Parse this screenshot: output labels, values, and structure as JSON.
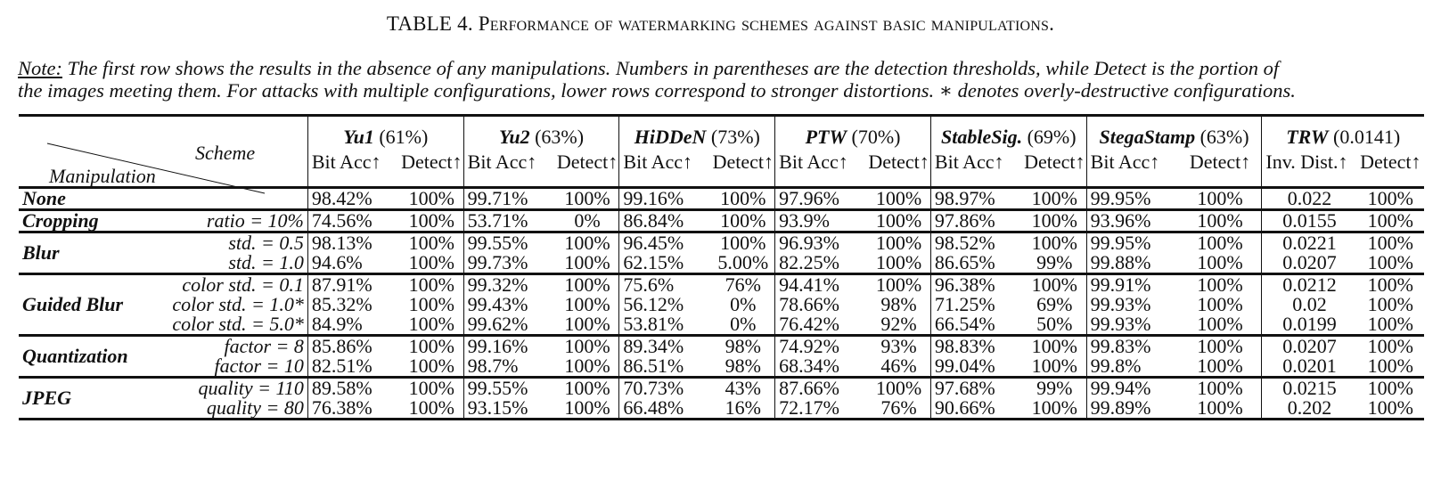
{
  "caption": {
    "label": "TABLE 4.",
    "title": "Performance of watermarking schemes against basic manipulations."
  },
  "note": {
    "label": "Note:",
    "text": " The first row shows the results in the absence of any manipulations. Numbers in parentheses are the detection thresholds, while Detect is the portion of",
    "text2": "the images meeting them. For attacks with multiple configurations, lower rows correspond to stronger distortions. ∗ denotes overly-destructive configurations."
  },
  "header": {
    "scheme_label": "Scheme",
    "manipulation_label": "Manipulation",
    "schemes": [
      {
        "name": "Yu1",
        "threshold": "(61%)"
      },
      {
        "name": "Yu2",
        "threshold": "(63%)"
      },
      {
        "name": "HiDDeN",
        "threshold": "(73%)"
      },
      {
        "name": "PTW",
        "threshold": "(70%)"
      },
      {
        "name": "StableSig.",
        "threshold": "(69%)"
      },
      {
        "name": "StegaStamp",
        "threshold": "(63%)"
      },
      {
        "name": "TRW",
        "threshold": "(0.0141)"
      }
    ],
    "sub": [
      "Bit Acc↑",
      "Detect↑",
      "Bit Acc↑",
      "Detect↑",
      "Bit Acc↑",
      "Detect↑",
      "Bit Acc↑",
      "Detect↑",
      "Bit Acc↑",
      "Detect↑",
      "Bit Acc↑",
      "Detect↑",
      "Inv. Dist.↑",
      "Detect↑"
    ]
  },
  "groups": [
    {
      "name": "None",
      "rows": [
        {
          "config": "",
          "values": [
            "98.42%",
            "100%",
            "99.71%",
            "100%",
            "99.16%",
            "100%",
            "97.96%",
            "100%",
            "98.97%",
            "100%",
            "99.95%",
            "100%",
            "0.022",
            "100%"
          ]
        }
      ]
    },
    {
      "name": "Cropping",
      "rows": [
        {
          "config": "ratio = 10%",
          "values": [
            "74.56%",
            "100%",
            "53.71%",
            "0%",
            "86.84%",
            "100%",
            "93.9%",
            "100%",
            "97.86%",
            "100%",
            "93.96%",
            "100%",
            "0.0155",
            "100%"
          ]
        }
      ]
    },
    {
      "name": "Blur",
      "rows": [
        {
          "config": "std. = 0.5",
          "values": [
            "98.13%",
            "100%",
            "99.55%",
            "100%",
            "96.45%",
            "100%",
            "96.93%",
            "100%",
            "98.52%",
            "100%",
            "99.95%",
            "100%",
            "0.0221",
            "100%"
          ]
        },
        {
          "config": "std. = 1.0",
          "values": [
            "94.6%",
            "100%",
            "99.73%",
            "100%",
            "62.15%",
            "5.00%",
            "82.25%",
            "100%",
            "86.65%",
            "99%",
            "99.88%",
            "100%",
            "0.0207",
            "100%"
          ]
        }
      ]
    },
    {
      "name": "Guided Blur",
      "rows": [
        {
          "config": "color std. = 0.1",
          "values": [
            "87.91%",
            "100%",
            "99.32%",
            "100%",
            "75.6%",
            "76%",
            "94.41%",
            "100%",
            "96.38%",
            "100%",
            "99.91%",
            "100%",
            "0.0212",
            "100%"
          ]
        },
        {
          "config": "color std. = 1.0*",
          "values": [
            "85.32%",
            "100%",
            "99.43%",
            "100%",
            "56.12%",
            "0%",
            "78.66%",
            "98%",
            "71.25%",
            "69%",
            "99.93%",
            "100%",
            "0.02",
            "100%"
          ]
        },
        {
          "config": "color std. = 5.0*",
          "values": [
            "84.9%",
            "100%",
            "99.62%",
            "100%",
            "53.81%",
            "0%",
            "76.42%",
            "92%",
            "66.54%",
            "50%",
            "99.93%",
            "100%",
            "0.0199",
            "100%"
          ]
        }
      ]
    },
    {
      "name": "Quantization",
      "rows": [
        {
          "config": "factor = 8",
          "values": [
            "85.86%",
            "100%",
            "99.16%",
            "100%",
            "89.34%",
            "98%",
            "74.92%",
            "93%",
            "98.83%",
            "100%",
            "99.83%",
            "100%",
            "0.0207",
            "100%"
          ]
        },
        {
          "config": "factor = 10",
          "values": [
            "82.51%",
            "100%",
            "98.7%",
            "100%",
            "86.51%",
            "98%",
            "68.34%",
            "46%",
            "99.04%",
            "100%",
            "99.8%",
            "100%",
            "0.0201",
            "100%"
          ]
        }
      ]
    },
    {
      "name": "JPEG",
      "rows": [
        {
          "config": "quality = 110",
          "values": [
            "89.58%",
            "100%",
            "99.55%",
            "100%",
            "70.73%",
            "43%",
            "87.66%",
            "100%",
            "97.68%",
            "99%",
            "99.94%",
            "100%",
            "0.0215",
            "100%"
          ]
        },
        {
          "config": "quality = 80",
          "values": [
            "76.38%",
            "100%",
            "93.15%",
            "100%",
            "66.48%",
            "16%",
            "72.17%",
            "76%",
            "90.66%",
            "100%",
            "99.89%",
            "100%",
            "0.202",
            "100%"
          ]
        }
      ]
    }
  ]
}
